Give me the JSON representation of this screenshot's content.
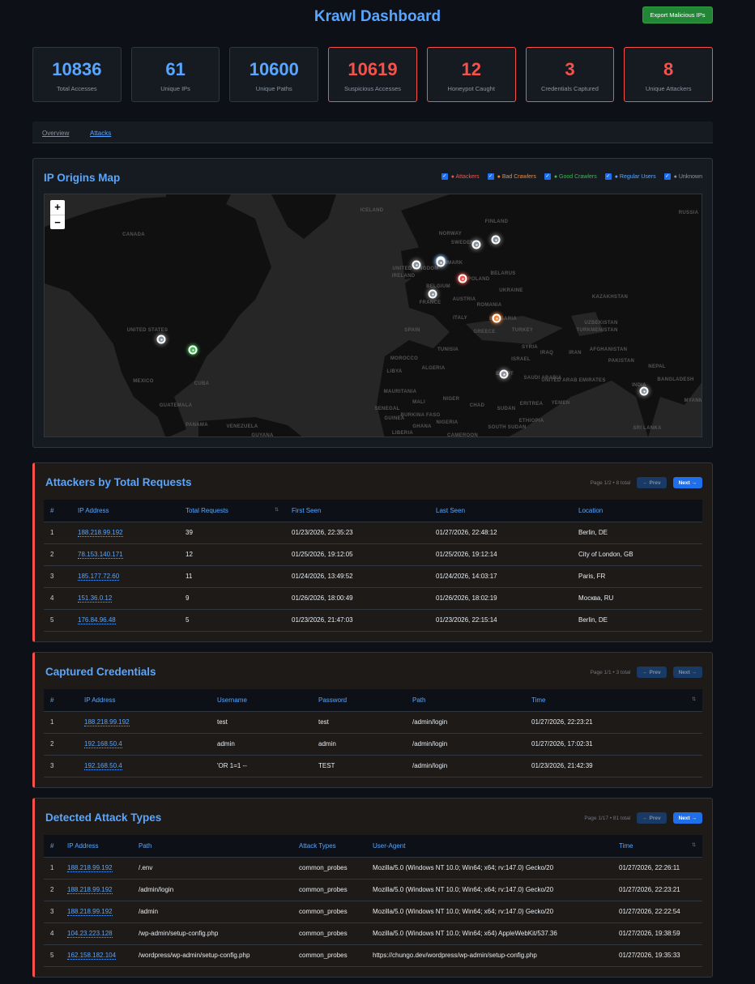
{
  "header": {
    "title": "Krawl Dashboard",
    "export_label": "Export Malicious IPs"
  },
  "stats": [
    {
      "value": "10836",
      "label": "Total Accesses",
      "alert": false
    },
    {
      "value": "61",
      "label": "Unique IPs",
      "alert": false
    },
    {
      "value": "10600",
      "label": "Unique Paths",
      "alert": false
    },
    {
      "value": "10619",
      "label": "Suspicious Accesses",
      "alert": true
    },
    {
      "value": "12",
      "label": "Honeypot Caught",
      "alert": true
    },
    {
      "value": "3",
      "label": "Credentials Captured",
      "alert": true
    },
    {
      "value": "8",
      "label": "Unique Attackers",
      "alert": true
    }
  ],
  "tabs": [
    {
      "label": "Overview",
      "active": false
    },
    {
      "label": "Attacks",
      "active": true
    }
  ],
  "map": {
    "title": "IP Origins Map",
    "legend": [
      {
        "label": "● Attackers",
        "color": "#f85149",
        "checked": true
      },
      {
        "label": "● Bad Crawlers",
        "color": "#f0883e",
        "checked": true
      },
      {
        "label": "● Good Crawlers",
        "color": "#3fb950",
        "checked": true
      },
      {
        "label": "● Regular Users",
        "color": "#58a6ff",
        "checked": true
      },
      {
        "label": "● Unknown",
        "color": "#8b949e",
        "checked": true
      }
    ],
    "zoom_in": "+",
    "zoom_out": "−",
    "markers": [
      {
        "category": "unknown",
        "color": "#8b949e"
      },
      {
        "category": "good-crawler",
        "color": "#3fb950"
      },
      {
        "category": "unknown",
        "color": "#8b949e"
      },
      {
        "category": "unknown",
        "color": "#8b949e"
      },
      {
        "category": "unknown",
        "color": "#8b949e"
      },
      {
        "category": "regular-user",
        "color": "#58a6ff"
      },
      {
        "category": "unknown",
        "color": "#8b949e"
      },
      {
        "category": "attacker",
        "color": "#f85149"
      },
      {
        "category": "unknown",
        "color": "#8b949e"
      },
      {
        "category": "bad-crawler",
        "color": "#f0883e"
      },
      {
        "category": "unknown",
        "color": "#8b949e"
      },
      {
        "category": "unknown",
        "color": "#8b949e"
      }
    ],
    "labels": [
      "CANADA",
      "UNITED STATES",
      "MEXICO",
      "CUBA",
      "GUATEMALA",
      "PANAMA",
      "VENEZUELA",
      "GUYANA",
      "ICELAND",
      "RUSSIA",
      "FINLAND",
      "NORWAY",
      "SWEDEN",
      "DENMARK",
      "UNITED KINGDOM",
      "IRELAND",
      "BELARUS",
      "BELGIUM",
      "POLAND",
      "UKRAINE",
      "AUSTRIA",
      "FRANCE",
      "KAZAKHSTAN",
      "ROMANIA",
      "ITALY",
      "BULGARIA",
      "SPAIN",
      "GREECE",
      "TURKEY",
      "UZBEKISTAN",
      "TURKMENISTAN",
      "TUNISIA",
      "SYRIA",
      "IRAQ",
      "IRAN",
      "AFGHANISTAN",
      "MOROCCO",
      "ISRAEL",
      "PAKISTAN",
      "ALGERIA",
      "NEPAL",
      "LIBYA",
      "SAUDI ARABIA",
      "UNITED ARAB EMIRATES",
      "BANGLADESH",
      "INDIA",
      "EGYPT",
      "MAURITANIA",
      "MALI",
      "NIGER",
      "CHAD",
      "SUDAN",
      "ERITREA",
      "YEMEN",
      "MYANMAR",
      "SENEGAL",
      "BURKINA FASO",
      "NIGERIA",
      "ETHIOPIA",
      "SOUTH SUDAN",
      "GHANA",
      "GUINEA",
      "SRI LANKA",
      "LIBERIA",
      "CAMEROON"
    ]
  },
  "attackers": {
    "title": "Attackers by Total Requests",
    "page_info": "Page 1/2 • 8 total",
    "prev": "← Prev",
    "next": "Next →",
    "prev_disabled": true,
    "next_disabled": false,
    "columns": [
      "#",
      "IP Address",
      "Total Requests",
      "First Seen",
      "Last Seen",
      "Location"
    ],
    "rows": [
      [
        "1",
        "188.218.99.192",
        "39",
        "01/23/2026, 22:35:23",
        "01/27/2026, 22:48:12",
        "Berlin, DE"
      ],
      [
        "2",
        "78.153.140.171",
        "12",
        "01/25/2026, 19:12:05",
        "01/25/2026, 19:12:14",
        "City of London, GB"
      ],
      [
        "3",
        "185.177.72.60",
        "11",
        "01/24/2026, 13:49:52",
        "01/24/2026, 14:03:17",
        "Paris, FR"
      ],
      [
        "4",
        "151.36.0.12",
        "9",
        "01/26/2026, 18:00:49",
        "01/26/2026, 18:02:19",
        "Москва, RU"
      ],
      [
        "5",
        "176.84.96.48",
        "5",
        "01/23/2026, 21:47:03",
        "01/23/2026, 22:15:14",
        "Berlin, DE"
      ]
    ]
  },
  "credentials": {
    "title": "Captured Credentials",
    "page_info": "Page 1/1 • 3 total",
    "prev": "← Prev",
    "next": "Next →",
    "prev_disabled": true,
    "next_disabled": true,
    "columns": [
      "#",
      "IP Address",
      "Username",
      "Password",
      "Path",
      "Time"
    ],
    "rows": [
      [
        "1",
        "188.218.99.192",
        "test",
        "test",
        "/admin/login",
        "01/27/2026, 22:23:21"
      ],
      [
        "2",
        "192.168.50.4",
        "admin",
        "admin",
        "/admin/login",
        "01/27/2026, 17:02:31"
      ],
      [
        "3",
        "192.168.50.4",
        "'OR 1=1 --",
        "TEST",
        "/admin/login",
        "01/23/2026, 21:42:39"
      ]
    ]
  },
  "attacks": {
    "title": "Detected Attack Types",
    "page_info": "Page 1/17 • 81 total",
    "prev": "← Prev",
    "next": "Next →",
    "prev_disabled": true,
    "next_disabled": false,
    "columns": [
      "#",
      "IP Address",
      "Path",
      "Attack Types",
      "User-Agent",
      "Time"
    ],
    "rows": [
      [
        "1",
        "188.218.99.192",
        "/.env",
        "common_probes",
        "Mozilla/5.0 (Windows NT 10.0; Win64; x64; rv:147.0) Gecko/20",
        "01/27/2026, 22:26:11"
      ],
      [
        "2",
        "188.218.99.192",
        "/admin/login",
        "common_probes",
        "Mozilla/5.0 (Windows NT 10.0; Win64; x64; rv:147.0) Gecko/20",
        "01/27/2026, 22:23:21"
      ],
      [
        "3",
        "188.218.99.192",
        "/admin",
        "common_probes",
        "Mozilla/5.0 (Windows NT 10.0; Win64; x64; rv:147.0) Gecko/20",
        "01/27/2026, 22:22:54"
      ],
      [
        "4",
        "104.23.223.128",
        "/wp-admin/setup-config.php",
        "common_probes",
        "Mozilla/5.0 (Windows NT 10.0; Win64; x64) AppleWebKit/537.36",
        "01/27/2026, 19:38:59"
      ],
      [
        "5",
        "162.158.182.104",
        "/wordpress/wp-admin/setup-config.php",
        "common_probes",
        "https://chungo.dev/wordpress/wp-admin/setup-config.php",
        "01/27/2026, 19:35:33"
      ]
    ]
  }
}
